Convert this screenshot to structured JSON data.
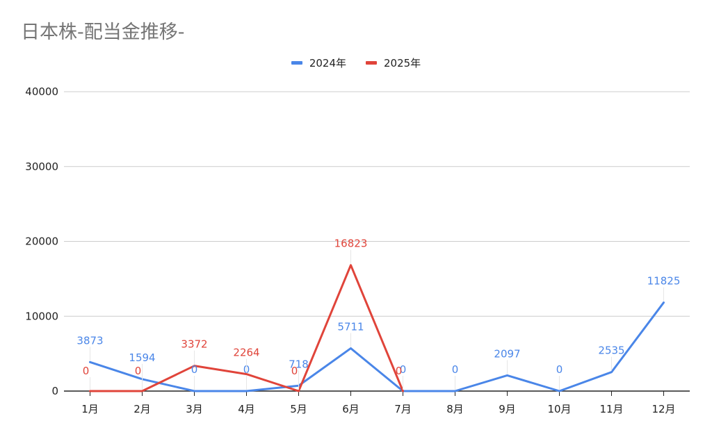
{
  "chart_data": {
    "type": "line",
    "title": "日本株-配当金推移-",
    "xlabel": "",
    "ylabel": "",
    "categories": [
      "1月",
      "2月",
      "3月",
      "4月",
      "5月",
      "6月",
      "7月",
      "8月",
      "9月",
      "10月",
      "11月",
      "12月"
    ],
    "series": [
      {
        "name": "2024年",
        "color": "#4a86e8",
        "values": [
          3873,
          1594,
          0,
          0,
          718,
          5711,
          0,
          0,
          2097,
          0,
          2535,
          11825
        ]
      },
      {
        "name": "2025年",
        "color": "#e0443a",
        "values": [
          0,
          0,
          3372,
          2264,
          0,
          16823,
          0,
          null,
          null,
          null,
          null,
          null
        ]
      }
    ],
    "ylim": [
      0,
      40000
    ],
    "yticks": [
      0,
      10000,
      20000,
      30000,
      40000
    ],
    "grid": true,
    "legend_position": "top-center",
    "data_labels": true
  }
}
